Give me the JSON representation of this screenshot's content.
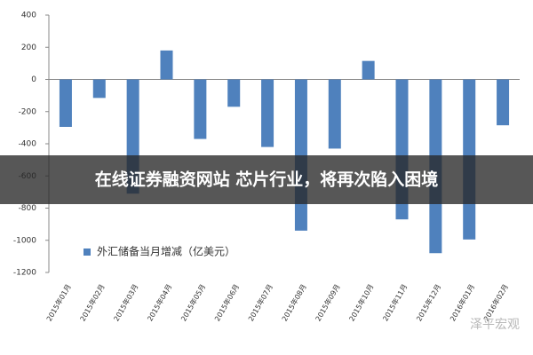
{
  "chart_data": {
    "type": "bar",
    "categories": [
      "2015年01月",
      "2015年02月",
      "2015年03月",
      "2015年04月",
      "2015年05月",
      "2015年06月",
      "2015年07月",
      "2015年08月",
      "2015年09月",
      "2015年10月",
      "2015年11月",
      "2015年12月",
      "2016年01月",
      "2016年02月"
    ],
    "series": [
      {
        "name": "外汇储备当月增减（亿美元）",
        "color": "#4f81bd",
        "values": [
          -295,
          -115,
          -710,
          180,
          -370,
          -170,
          -420,
          -940,
          -430,
          115,
          -870,
          -1080,
          -995,
          -285
        ]
      }
    ],
    "ylim": [
      -1200,
      400
    ],
    "yticks": [
      -1200,
      -1000,
      -800,
      -600,
      -400,
      -200,
      0,
      200,
      400
    ],
    "grid": false,
    "legend": "lower left",
    "overlay_text": "在线证券融资网站 芯片行业，将再次陷入困境",
    "watermark": "泽平宏观"
  }
}
